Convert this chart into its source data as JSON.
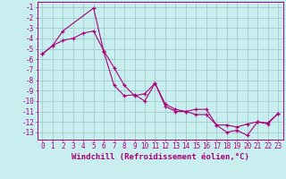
{
  "xlabel": "Windchill (Refroidissement éolien,°C)",
  "bg_color": "#c8eef0",
  "grid_color": "#a0ccc8",
  "line_color": "#aa0077",
  "xlim": [
    -0.5,
    23.5
  ],
  "ylim": [
    -13.7,
    -0.5
  ],
  "xticks": [
    0,
    1,
    2,
    3,
    4,
    5,
    6,
    7,
    8,
    9,
    10,
    11,
    12,
    13,
    14,
    15,
    16,
    17,
    18,
    19,
    20,
    21,
    22,
    23
  ],
  "yticks": [
    -1,
    -2,
    -3,
    -4,
    -5,
    -6,
    -7,
    -8,
    -9,
    -10,
    -11,
    -12,
    -13
  ],
  "line1_x": [
    0,
    1,
    2,
    5,
    6,
    7,
    8,
    9,
    10,
    11,
    12,
    13,
    14,
    15,
    16,
    17,
    18,
    19,
    20,
    21,
    22,
    23
  ],
  "line1_y": [
    -5.5,
    -4.7,
    -3.3,
    -1.1,
    -5.3,
    -8.5,
    -9.5,
    -9.4,
    -10.0,
    -8.3,
    -10.5,
    -11.0,
    -11.0,
    -10.8,
    -10.8,
    -12.3,
    -13.0,
    -12.8,
    -13.3,
    -12.0,
    -12.2,
    -11.2
  ],
  "line2_x": [
    0,
    1,
    2,
    3,
    4,
    5,
    6,
    7,
    8,
    9,
    10,
    11,
    12,
    13,
    14,
    15,
    16,
    17,
    18,
    19,
    20,
    21,
    22,
    23
  ],
  "line2_y": [
    -5.5,
    -4.7,
    -4.2,
    -4.0,
    -3.5,
    -3.3,
    -5.2,
    -6.8,
    -8.5,
    -9.5,
    -9.3,
    -8.3,
    -10.3,
    -10.8,
    -11.0,
    -11.3,
    -11.3,
    -12.3,
    -12.3,
    -12.5,
    -12.2,
    -12.0,
    -12.1,
    -11.2
  ],
  "tick_fontsize": 5.5,
  "xlabel_fontsize": 6.5
}
